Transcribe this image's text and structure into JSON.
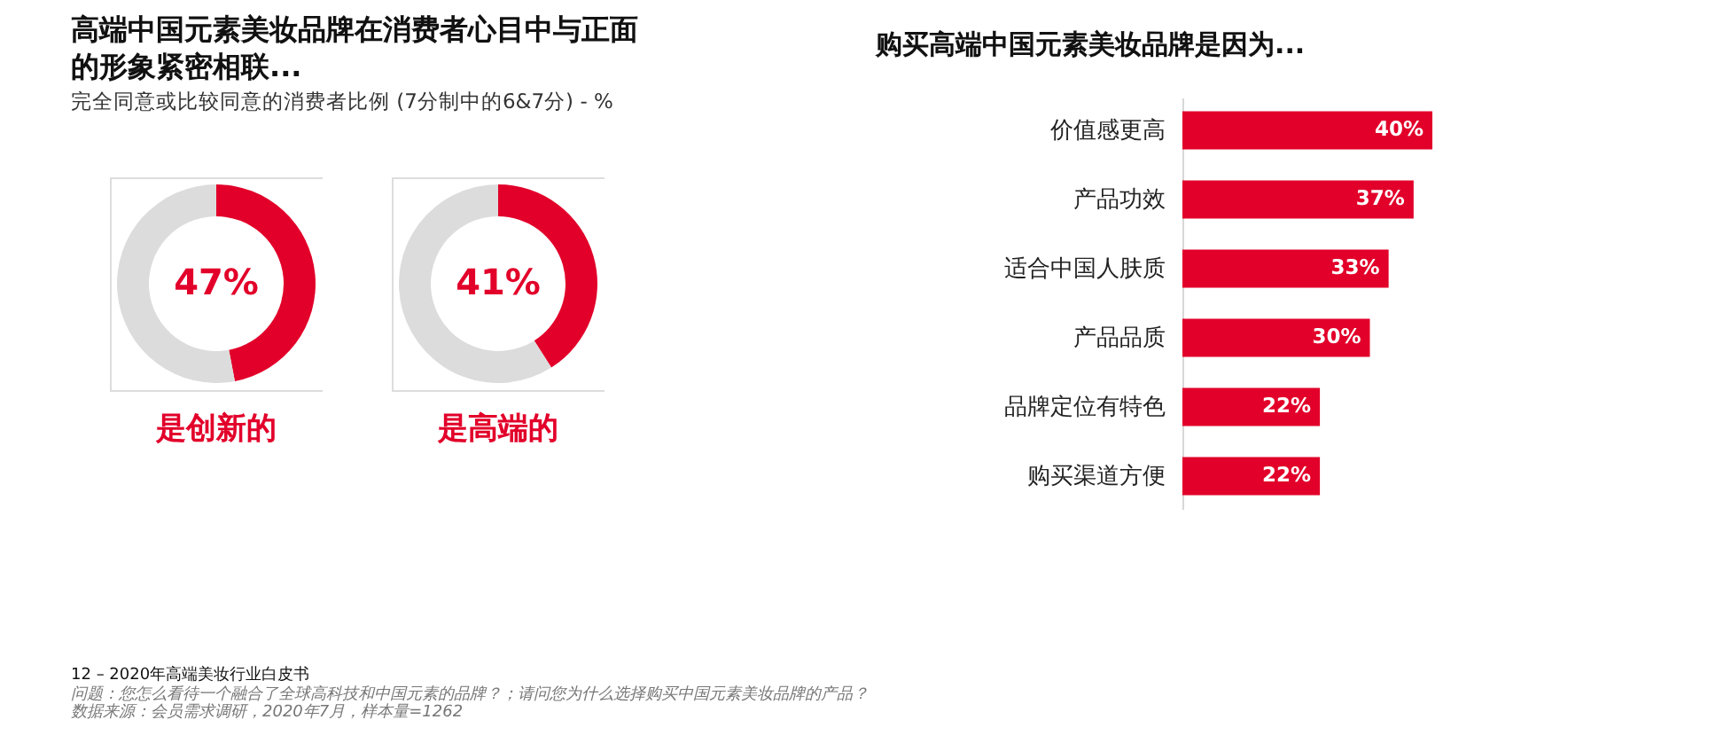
{
  "chart_data": [
    {
      "type": "donut",
      "title": "高端中国元素美妆品牌在消费者心目中与正面的形象紧密相联...",
      "subtitle": "完全同意或比较同意的消费者比例 (7分制中的6&7分) - %",
      "xlabel": "是创新的",
      "categories": [
        null,
        null
      ],
      "values": [
        47,
        53
      ],
      "colors": [
        "#e2002a",
        "#dcdcdc"
      ],
      "value_labels": [
        "47%",
        null
      ],
      "annotations": [
        "12 – 2020年高端美妆行业白皮书",
        "问题：您怎么看待一个融合了全球高科技和中国元素的品牌？；请问您为什么选择购买中国元素美妆品牌的产品？",
        "数据来源：会员需求调研，2020年7月，样本量=1262"
      ]
    },
    {
      "type": "donut",
      "xlabel": "是高端的",
      "categories": [
        null,
        null
      ],
      "values": [
        41,
        59
      ],
      "colors": [
        "#e2002a",
        "#dcdcdc"
      ],
      "value_labels": [
        "41%",
        null
      ]
    },
    {
      "type": "bar",
      "orientation": "horizontal",
      "title": "购买高端中国元素美妆品牌是因为...",
      "categories": [
        "价值感更高",
        "产品功效",
        "适合中国人肤质",
        "产品品质",
        "品牌定位有特色",
        "购买渠道方便"
      ],
      "values": [
        40,
        37,
        33,
        30,
        22,
        22
      ],
      "color": "#e2002a",
      "value_labels": [
        "40%",
        "37%",
        "33%",
        "30%",
        "22%",
        "22%"
      ]
    }
  ]
}
